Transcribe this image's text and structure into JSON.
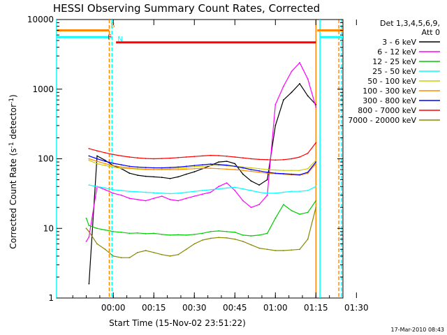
{
  "chart_data": {
    "type": "line",
    "title": "HESSI Observing Summary Count Rates, Corrected",
    "xlabel": "Start Time (15-Nov-02 23:51:22)",
    "ylabel_main": "Corrected Count Rate (s",
    "ylabel_sup": "-1",
    "ylabel_mid": " detector",
    "ylabel_end": ")",
    "footer": "17-Mar-2010 08:43",
    "yscale": "log",
    "ylim": [
      1,
      10000
    ],
    "xlim_minutes": [
      -12,
      94
    ],
    "x_ticks": [
      {
        "label": "00:00",
        "min": 9
      },
      {
        "label": "00:15",
        "min": 24
      },
      {
        "label": "00:30",
        "min": 39
      },
      {
        "label": "00:45",
        "min": 54
      },
      {
        "label": "01:00",
        "min": 69
      },
      {
        "label": "01:15",
        "min": 84
      },
      {
        "label": "01:30",
        "min": 99
      }
    ],
    "y_ticks": [
      {
        "label": "1",
        "value": 1
      },
      {
        "label": "10",
        "value": 10
      },
      {
        "label": "100",
        "value": 100
      },
      {
        "label": "1000",
        "value": 1000
      },
      {
        "label": "10000",
        "value": 10000
      }
    ],
    "legend_header": [
      "Det 1,3,4,5,6,9,",
      "Att 0"
    ],
    "series": [
      {
        "name": "3 - 6 keV",
        "color": "#000000",
        "x": [
          0.0,
          3.0,
          6.0,
          9.0,
          12.0,
          15.0,
          18.0,
          21.0,
          24.0,
          27.0,
          30.0,
          33.0,
          36.0,
          39.0,
          42.0,
          45.0,
          48.0,
          51.0,
          54.0,
          57.0,
          60.0,
          63.0,
          66.0,
          69.0,
          72.0,
          75.0,
          78.0,
          81.0,
          84.0
        ],
        "y": [
          1.6,
          110,
          95,
          80,
          72,
          62,
          58,
          56,
          55,
          54,
          52,
          55,
          60,
          65,
          72,
          80,
          90,
          92,
          85,
          60,
          48,
          42,
          50,
          300,
          700,
          900,
          1200,
          800,
          600
        ]
      },
      {
        "name": "6 - 12 keV",
        "color": "#ff00ff",
        "x": [
          -1.0,
          0.0,
          3.0,
          6.0,
          9.0,
          12.0,
          15.0,
          18.0,
          21.0,
          24.0,
          27.0,
          30.0,
          33.0,
          36.0,
          39.0,
          42.0,
          45.0,
          48.0,
          51.0,
          54.0,
          57.0,
          60.0,
          63.0,
          66.0,
          69.0,
          72.0,
          75.0,
          78.0,
          81.0,
          84.0
        ],
        "y": [
          6.5,
          7.5,
          40,
          36,
          32,
          30,
          27,
          26,
          25,
          27,
          29,
          26,
          25,
          27,
          29,
          31,
          33,
          40,
          45,
          35,
          25,
          20,
          22,
          30,
          600,
          1100,
          1800,
          2400,
          1400,
          550
        ]
      },
      {
        "name": "12 - 25 keV",
        "color": "#00cc00",
        "x": [
          -1.0,
          0.0,
          3.0,
          6.0,
          9.0,
          12.0,
          15.0,
          18.0,
          21.0,
          24.0,
          27.0,
          30.0,
          33.0,
          36.0,
          39.0,
          42.0,
          45.0,
          48.0,
          51.0,
          54.0,
          57.0,
          60.0,
          63.0,
          66.0,
          69.0,
          72.0,
          75.0,
          78.0,
          81.0,
          84.0
        ],
        "y": [
          14,
          11,
          10,
          9.5,
          9,
          8.8,
          8.5,
          8.6,
          8.4,
          8.5,
          8.2,
          8.0,
          8.1,
          8.0,
          8.2,
          8.5,
          9.0,
          9.2,
          9.0,
          8.8,
          8.0,
          7.8,
          8.0,
          8.5,
          14,
          22,
          18,
          16,
          17,
          25
        ]
      },
      {
        "name": "25 - 50 keV",
        "color": "#00ffff",
        "x": [
          0.0,
          3.0,
          6.0,
          9.0,
          12.0,
          15.0,
          18.0,
          21.0,
          24.0,
          27.0,
          30.0,
          33.0,
          36.0,
          39.0,
          42.0,
          45.0,
          48.0,
          51.0,
          54.0,
          57.0,
          60.0,
          63.0,
          66.0,
          69.0,
          72.0,
          75.0,
          78.0,
          81.0,
          84.0
        ],
        "y": [
          42,
          40,
          38,
          36,
          35,
          34,
          33.5,
          33,
          32.5,
          32,
          31.5,
          32,
          33,
          34,
          35,
          36,
          37,
          38,
          39,
          37,
          35,
          33,
          32,
          32,
          33,
          34,
          34,
          35,
          40
        ]
      },
      {
        "name": "50 - 100 keV",
        "color": "#cccc00",
        "x": [
          0.0,
          3.0,
          6.0,
          9.0,
          12.0,
          15.0,
          18.0,
          21.0,
          24.0,
          27.0,
          30.0,
          33.0,
          36.0,
          39.0,
          42.0,
          45.0,
          48.0,
          51.0,
          54.0,
          57.0,
          60.0,
          63.0,
          66.0,
          69.0,
          72.0,
          75.0,
          78.0,
          81.0,
          84.0
        ],
        "y": [
          95,
          85,
          80,
          76,
          73,
          72,
          71,
          70,
          70,
          71,
          72,
          73,
          75,
          77,
          78,
          80,
          80,
          79,
          78,
          76,
          74,
          72,
          70,
          69,
          68,
          68,
          68,
          72,
          95
        ]
      },
      {
        "name": "100 - 300 keV",
        "color": "#ff8800",
        "x": [
          0.0,
          3.0,
          6.0,
          9.0,
          12.0,
          15.0,
          18.0,
          21.0,
          24.0,
          27.0,
          30.0,
          33.0,
          36.0,
          39.0,
          42.0,
          45.0,
          48.0,
          51.0,
          54.0,
          57.0,
          60.0,
          63.0,
          66.0,
          69.0,
          72.0,
          75.0,
          78.0,
          81.0,
          84.0
        ],
        "y": [
          100,
          92,
          85,
          80,
          76,
          74,
          72,
          71,
          70,
          70,
          70,
          70,
          71,
          72,
          73,
          73,
          72,
          71,
          70,
          68,
          66,
          64,
          62,
          61,
          60,
          59,
          58,
          62,
          85
        ]
      },
      {
        "name": "300 - 800 keV",
        "color": "#0000ff",
        "x": [
          0.0,
          3.0,
          6.0,
          9.0,
          12.0,
          15.0,
          18.0,
          21.0,
          24.0,
          27.0,
          30.0,
          33.0,
          36.0,
          39.0,
          42.0,
          45.0,
          48.0,
          51.0,
          54.0,
          57.0,
          60.0,
          63.0,
          66.0,
          69.0,
          72.0,
          75.0,
          78.0,
          81.0,
          84.0
        ],
        "y": [
          110,
          100,
          92,
          86,
          82,
          78,
          76,
          75,
          74,
          74,
          75,
          76,
          78,
          80,
          82,
          84,
          83,
          81,
          78,
          74,
          70,
          67,
          64,
          62,
          61,
          60,
          59,
          64,
          90
        ]
      },
      {
        "name": "800 - 7000 keV",
        "color": "#ff0000",
        "x": [
          0.0,
          3.0,
          6.0,
          9.0,
          12.0,
          15.0,
          18.0,
          21.0,
          24.0,
          27.0,
          30.0,
          33.0,
          36.0,
          39.0,
          42.0,
          45.0,
          48.0,
          51.0,
          54.0,
          57.0,
          60.0,
          63.0,
          66.0,
          69.0,
          72.0,
          75.0,
          78.0,
          81.0,
          84.0
        ],
        "y": [
          140,
          130,
          122,
          115,
          110,
          106,
          103,
          101,
          100,
          101,
          102,
          104,
          106,
          108,
          110,
          112,
          111,
          109,
          106,
          103,
          100,
          98,
          97,
          96,
          97,
          100,
          106,
          120,
          170
        ]
      },
      {
        "name": "7000 - 20000 keV",
        "color": "#888800",
        "x": [
          -1.0,
          0.0,
          3.0,
          6.0,
          9.0,
          12.0,
          15.0,
          18.0,
          21.0,
          24.0,
          27.0,
          30.0,
          33.0,
          36.0,
          39.0,
          42.0,
          45.0,
          48.0,
          51.0,
          54.0,
          57.0,
          60.0,
          63.0,
          66.0,
          69.0,
          72.0,
          75.0,
          78.0,
          81.0,
          84.0
        ],
        "y": [
          10,
          9,
          6.0,
          5.0,
          4.0,
          3.8,
          3.8,
          4.5,
          4.8,
          4.5,
          4.2,
          4.0,
          4.2,
          5.0,
          6.0,
          6.8,
          7.2,
          7.4,
          7.3,
          7.0,
          6.5,
          5.8,
          5.2,
          5.0,
          4.8,
          4.8,
          4.9,
          5.0,
          7,
          20
        ]
      }
    ],
    "attenuator_bars": [
      {
        "label": "S",
        "color": "#ff8800",
        "y": 7000,
        "segments": [
          [
            -12,
            7.5
          ],
          [
            84.5,
            94
          ]
        ]
      },
      {
        "label": "N",
        "color": "#00ffff",
        "y": 5600,
        "segments": [
          [
            -12,
            8.5
          ],
          [
            85.5,
            94
          ]
        ]
      },
      {
        "label": "F",
        "color": "#ff0000",
        "y": 4700,
        "segments": [
          [
            10,
            84
          ]
        ]
      }
    ],
    "vertical_lines": [
      {
        "x": -12,
        "color": "#00ffff",
        "style": "solid"
      },
      {
        "x": 7.5,
        "color": "#ff8800",
        "style": "dashed"
      },
      {
        "x": 8.5,
        "color": "#00ffff",
        "style": "dashed"
      },
      {
        "x": 84,
        "color": "#ff8800",
        "style": "solid"
      },
      {
        "x": 85.5,
        "color": "#00ffff",
        "style": "solid"
      },
      {
        "x": 92.5,
        "color": "#ff8800",
        "style": "dashed"
      },
      {
        "x": 93.5,
        "color": "#00ffff",
        "style": "dashed"
      }
    ]
  }
}
